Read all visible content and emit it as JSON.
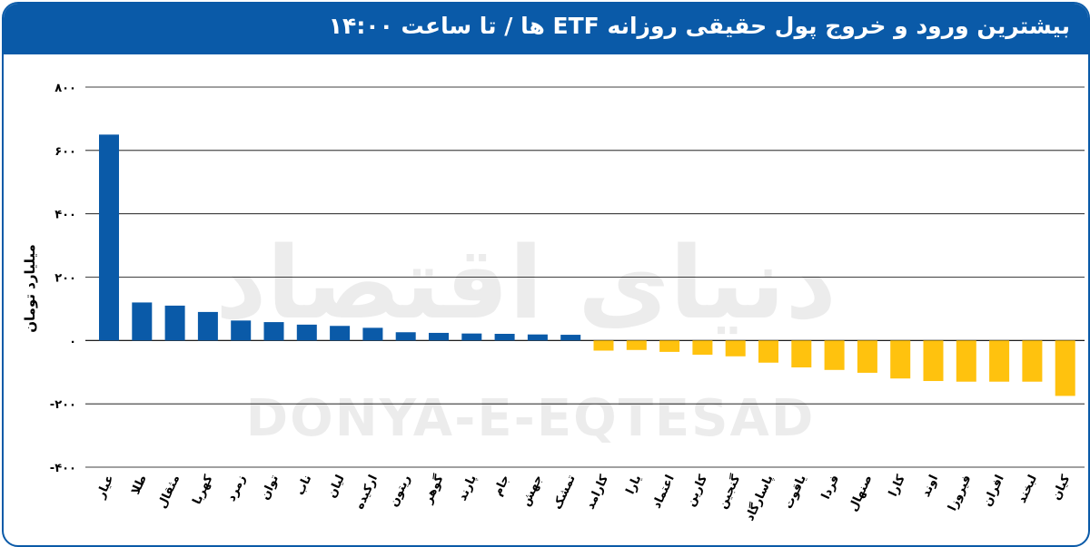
{
  "title": "بیشترین ورود و خروج پول حقیقی روزانه ETF ها / تا ساعت ۱۴:۰۰",
  "watermark": {
    "fa": "دنیای اقتصاد",
    "en": "DONYA-E-EQTESAD"
  },
  "colors": {
    "header": "#0a5aa8",
    "inflow": "#0a5aa8",
    "outflow": "#ffc20e",
    "grid": "#000000"
  },
  "chart_data": {
    "type": "bar",
    "title": "بیشترین ورود و خروج پول حقیقی روزانه ETF ها / تا ساعت ۱۴:۰۰",
    "xlabel": "",
    "ylabel": "میلیارد تومان",
    "ylim": [
      -400,
      800
    ],
    "yticks": [
      800,
      600,
      400,
      200,
      0,
      -200,
      -400
    ],
    "ytick_labels": [
      "۸۰۰",
      "۶۰۰",
      "۴۰۰",
      "۲۰۰",
      "۰",
      "-۲۰۰",
      "-۴۰۰"
    ],
    "grid": true,
    "categories": [
      "عیار",
      "طلا",
      "مثقال",
      "کهربا",
      "زمرد",
      "توان",
      "ناب",
      "لیان",
      "ارکیده",
      "ریتون",
      "گوهر",
      "پارند",
      "جام",
      "جهش",
      "تمشک",
      "کارامد",
      "یارا",
      "اعتماد",
      "کارین",
      "گنجین",
      "پاسارگاد",
      "یاقوت",
      "فردا",
      "صنهال",
      "کارا",
      "اوند",
      "فیروزا",
      "افران",
      "لبخند",
      "کیان"
    ],
    "values": [
      650,
      120,
      110,
      90,
      63,
      58,
      50,
      46,
      40,
      26,
      24,
      22,
      21,
      19,
      18,
      -32,
      -30,
      -36,
      -45,
      -50,
      -70,
      -85,
      -93,
      -102,
      -120,
      -128,
      -130,
      -130,
      -130,
      -175
    ]
  }
}
